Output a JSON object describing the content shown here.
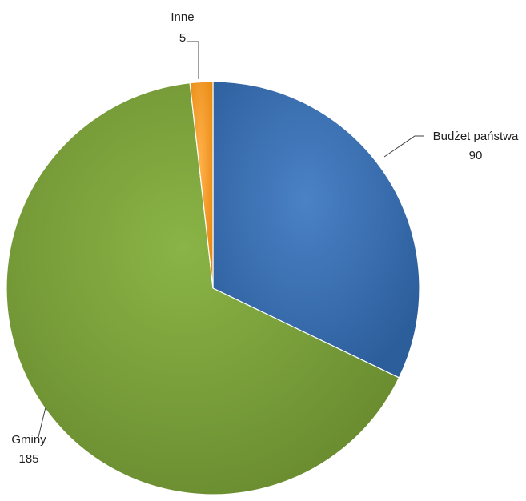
{
  "chart_data": {
    "type": "pie",
    "categories": [
      "Budżet państwa",
      "Gminy",
      "Inne"
    ],
    "values": [
      90,
      185,
      5
    ],
    "colors": [
      "#3a6fb0",
      "#7a9e3a",
      "#f59a23"
    ],
    "slice_names": [
      "slice-budzet-panstwa",
      "slice-gminy",
      "slice-inne"
    ],
    "labels": [
      {
        "name": "Budżet państwa",
        "value": "90"
      },
      {
        "name": "Gminy",
        "value": "185"
      },
      {
        "name": "Inne",
        "value": "5"
      }
    ],
    "start_angle": "12 o'clock",
    "direction": "clockwise",
    "legend": "none"
  }
}
